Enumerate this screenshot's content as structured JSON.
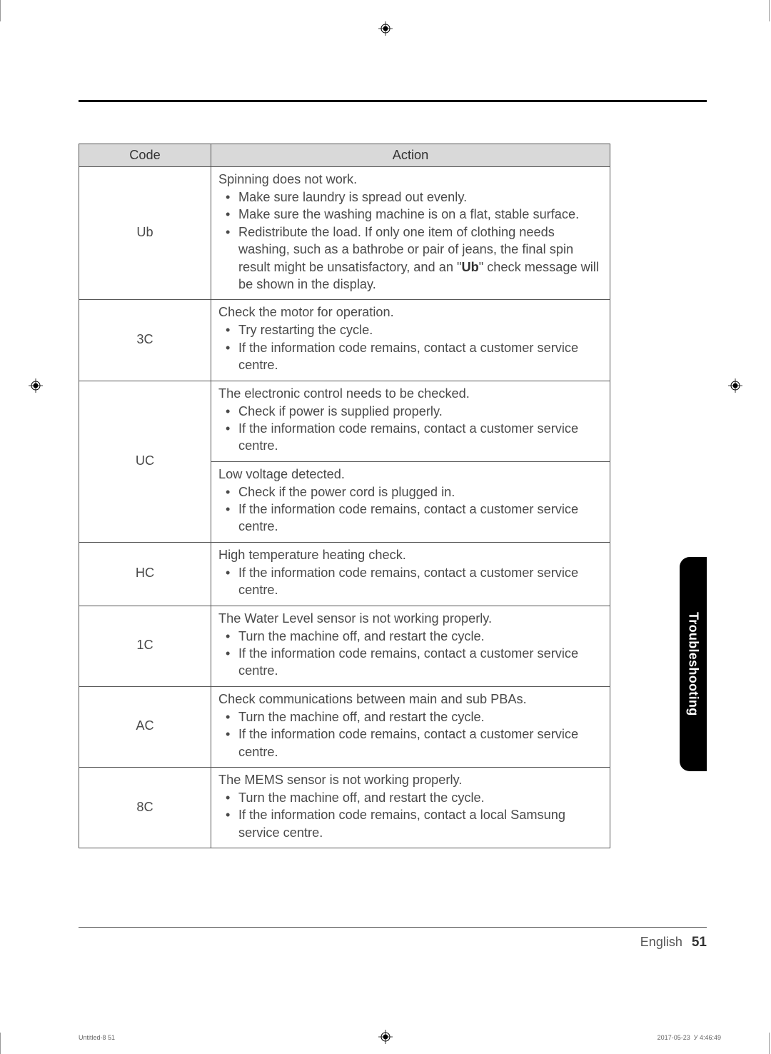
{
  "table": {
    "headers": {
      "code": "Code",
      "action": "Action"
    },
    "rows": [
      {
        "code": "Ub",
        "sections": [
          {
            "intro": "Spinning does not work.",
            "items": [
              "Make sure laundry is spread out evenly.",
              "Make sure the washing machine is on a flat, stable surface.",
              "Redistribute the load. If only one item of clothing needs washing, such as a bathrobe or pair of jeans, the final spin result might be unsatisfactory, and an \"<b class='ub'>Ub</b>\" check message will be shown in the display."
            ]
          }
        ]
      },
      {
        "code": "3C",
        "sections": [
          {
            "intro": "Check the motor for operation.",
            "items": [
              "Try restarting the cycle.",
              "If the information code remains, contact a customer service centre."
            ]
          }
        ]
      },
      {
        "code": "UC",
        "sections": [
          {
            "intro": "The electronic control needs to be checked.",
            "items": [
              "Check if power is supplied properly.",
              "If the information code remains, contact a customer service centre."
            ]
          },
          {
            "intro": "Low voltage detected.",
            "items": [
              "Check if the power cord is plugged in.",
              "If the information code remains, contact a customer service centre."
            ]
          }
        ]
      },
      {
        "code": "HC",
        "sections": [
          {
            "intro": "High temperature heating check.",
            "items": [
              "If the information code remains, contact a customer service centre."
            ]
          }
        ]
      },
      {
        "code": "1C",
        "sections": [
          {
            "intro": "The Water Level sensor is not working properly.",
            "items": [
              "Turn the machine off, and restart the cycle.",
              "If the information code remains, contact a customer service centre."
            ]
          }
        ]
      },
      {
        "code": "AC",
        "sections": [
          {
            "intro": "Check communications between main and sub PBAs.",
            "items": [
              "Turn the machine off, and restart the cycle.",
              "If the information code remains, contact a customer service centre."
            ]
          }
        ]
      },
      {
        "code": "8C",
        "sections": [
          {
            "intro": "The MEMS sensor is not working properly.",
            "items": [
              "Turn the machine off, and restart the cycle.",
              "If the information code remains, contact a local Samsung service centre."
            ]
          }
        ]
      }
    ]
  },
  "tab": {
    "label": "Troubleshooting"
  },
  "footer": {
    "language": "English",
    "page": "51"
  },
  "slug": {
    "left": "Untitled-8   51",
    "right_date": "2017-05-23",
    "right_ideo": "У",
    "right_time": "4:46:49"
  },
  "colors": {
    "header_bg": "#d9d9d9",
    "border": "#555555",
    "text": "#4a4a4a",
    "tab_bg": "#000000",
    "tab_text": "#ffffff",
    "page_bg": "#ffffff"
  }
}
